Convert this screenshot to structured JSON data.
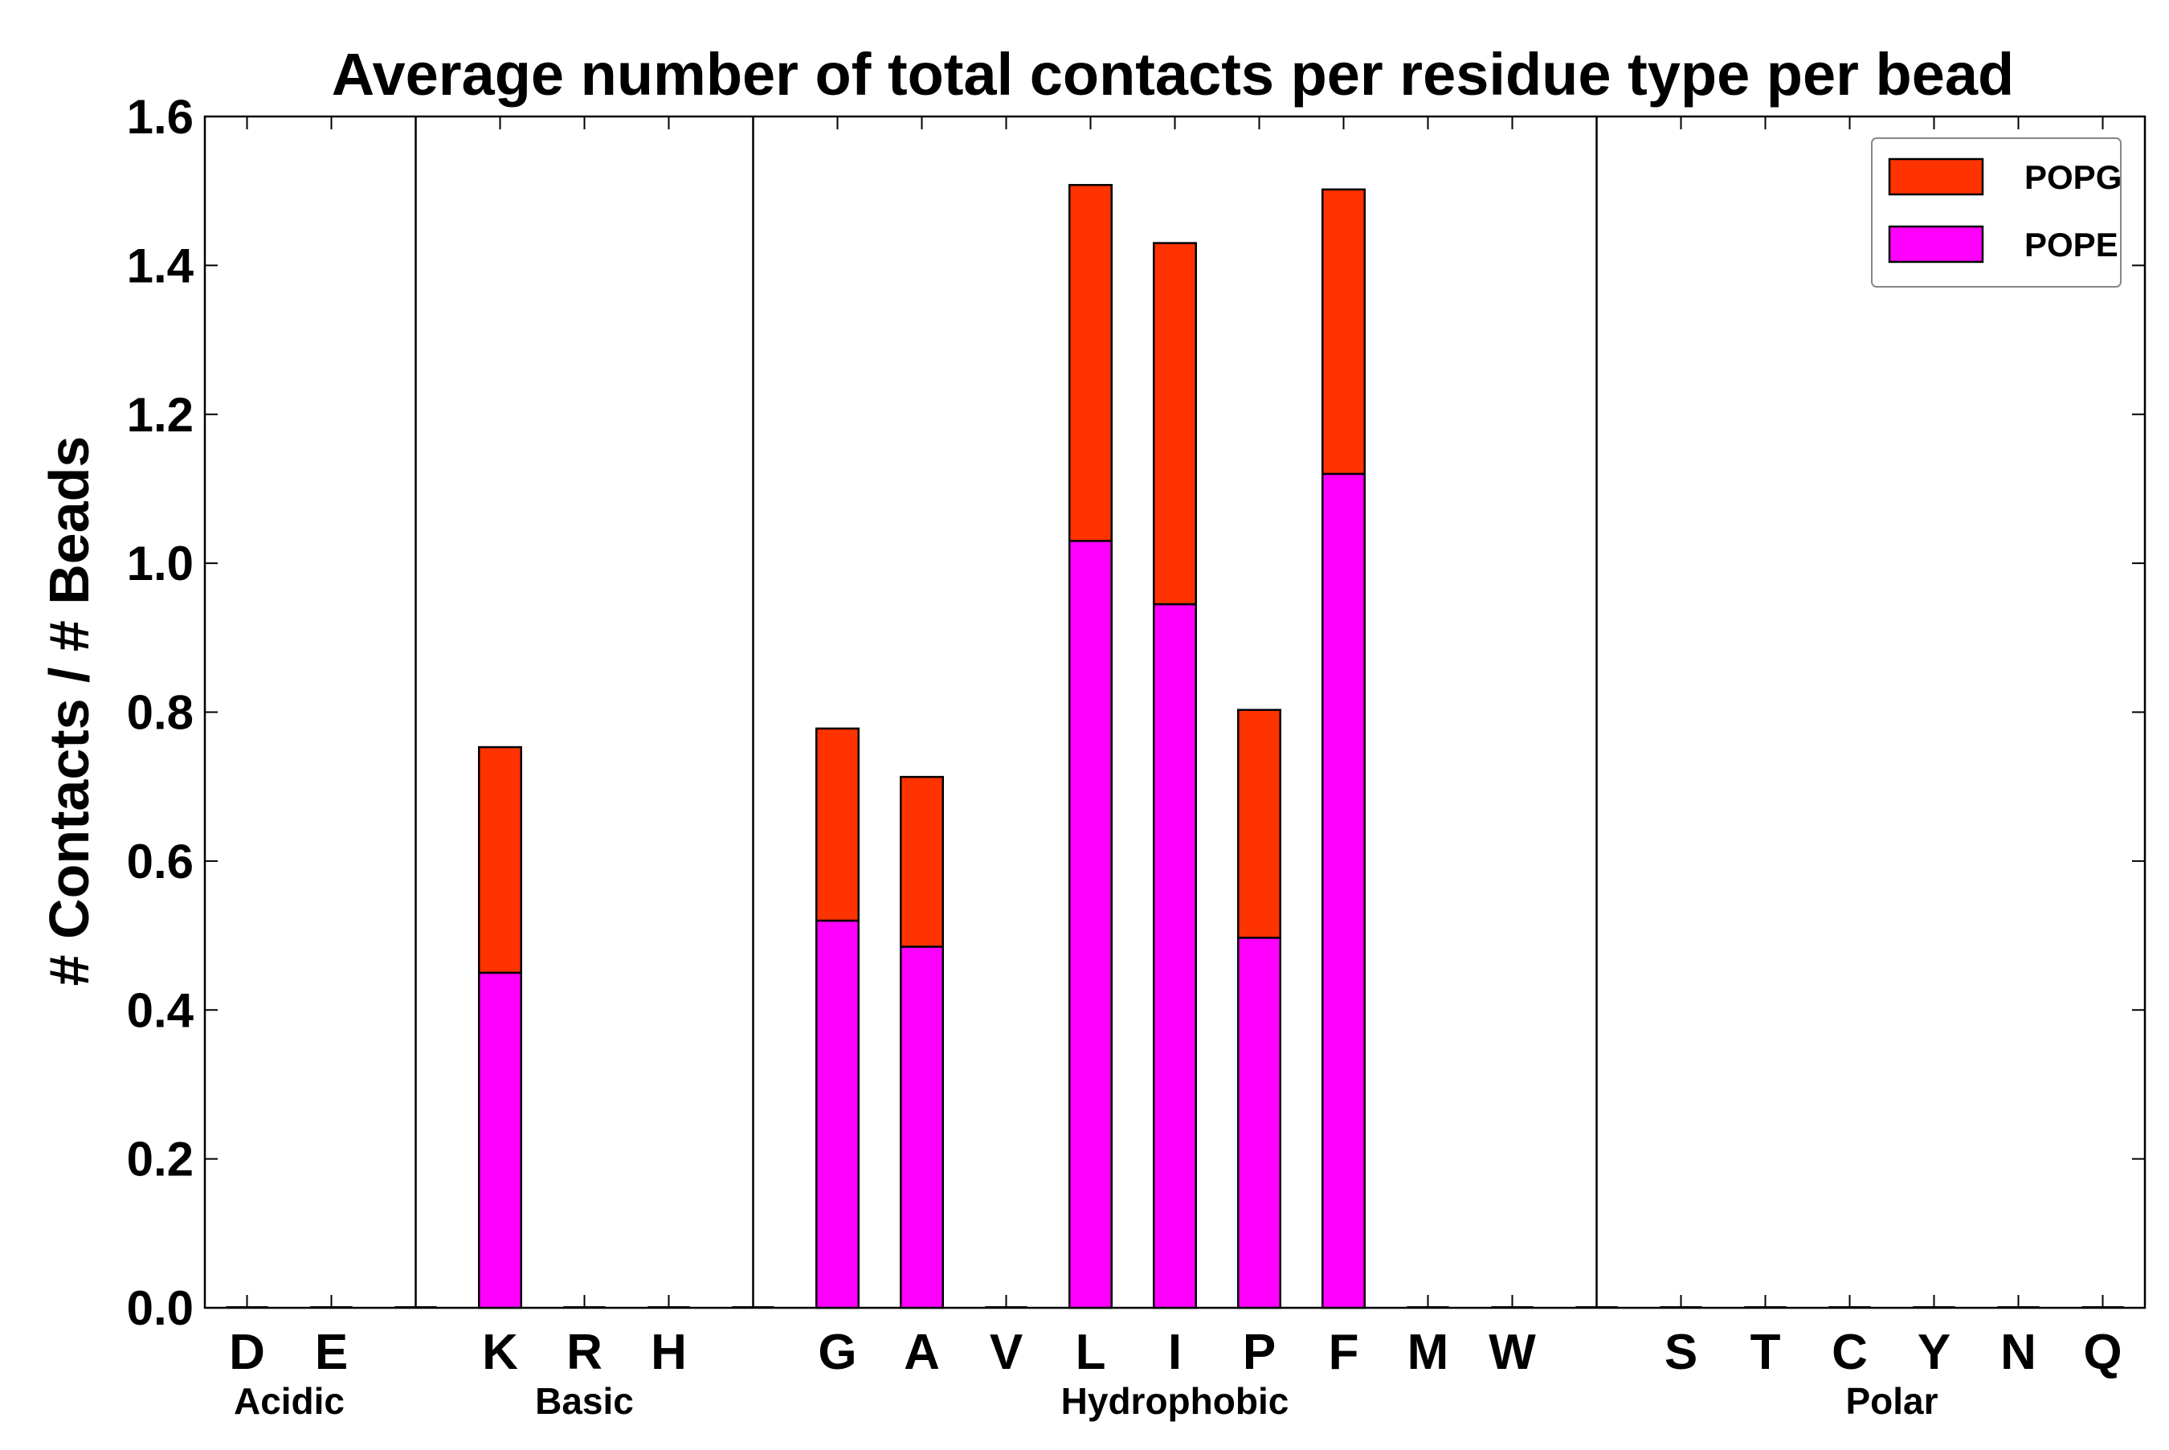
{
  "chart_data": {
    "type": "bar",
    "stacked": true,
    "title": "Average number of total contacts per residue type per bead",
    "xlabel": "",
    "ylabel": "# Contacts / # Beads",
    "ylim": [
      0,
      1.6
    ],
    "yticks": [
      "0.0",
      "0.2",
      "0.4",
      "0.6",
      "0.8",
      "1.0",
      "1.2",
      "1.4",
      "1.6"
    ],
    "categories": [
      "D",
      "E",
      "",
      "K",
      "R",
      "H",
      "",
      "G",
      "A",
      "V",
      "L",
      "I",
      "P",
      "F",
      "M",
      "W",
      "",
      "S",
      "T",
      "C",
      "Y",
      "N",
      "Q"
    ],
    "groups": [
      {
        "name": "Acidic",
        "members": [
          "D",
          "E"
        ]
      },
      {
        "name": "Basic",
        "members": [
          "K",
          "R",
          "H"
        ]
      },
      {
        "name": "Hydrophobic",
        "members": [
          "G",
          "A",
          "V",
          "L",
          "I",
          "P",
          "F",
          "M",
          "W"
        ]
      },
      {
        "name": "Polar",
        "members": [
          "S",
          "T",
          "C",
          "Y",
          "N",
          "Q"
        ]
      }
    ],
    "series": [
      {
        "name": "POPE",
        "color": "#ff00ff",
        "values": [
          0,
          0,
          0,
          0.45,
          0,
          0,
          0,
          0.52,
          0.485,
          0,
          1.03,
          0.945,
          0.497,
          1.12,
          0,
          0,
          0,
          0,
          0,
          0,
          0,
          0,
          0
        ]
      },
      {
        "name": "POPG",
        "color": "#ff3300",
        "values": [
          0,
          0,
          0,
          0.303,
          0,
          0,
          0,
          0.258,
          0.228,
          0,
          0.478,
          0.485,
          0.306,
          0.382,
          0,
          0,
          0,
          0,
          0,
          0,
          0,
          0,
          0
        ]
      }
    ],
    "legend": {
      "position": "top-right",
      "order": [
        "POPG",
        "POPE"
      ]
    },
    "grid": false
  }
}
